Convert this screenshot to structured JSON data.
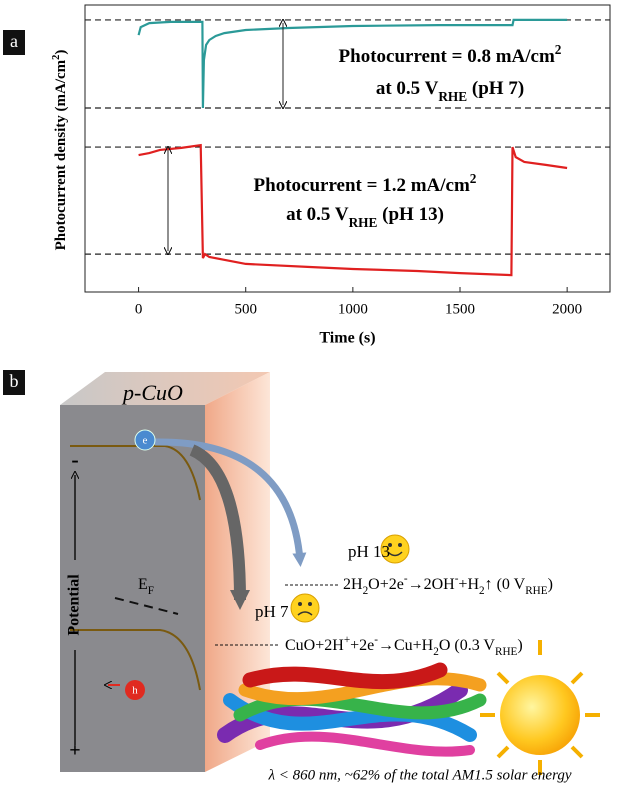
{
  "panel_labels": [
    "a",
    "b"
  ],
  "chart_data": {
    "type": "line",
    "xlabel": "Time (s)",
    "ylabel": [
      {
        "text": "Photocurrent density (mA/cm"
      },
      {
        "text": "2",
        "pos": "super"
      },
      {
        "text": ")"
      }
    ],
    "xlim": [
      -250,
      2200
    ],
    "xticks": [
      0,
      500,
      1000,
      1500,
      2000
    ],
    "ylim": [
      0,
      100
    ],
    "reference_lines": [
      94.8,
      64.1,
      50.5,
      13.2
    ],
    "series": [
      {
        "color": "#2b9a98",
        "x": [
          0,
          10,
          50,
          150,
          298,
          300,
          305,
          315,
          330,
          360,
          400,
          500,
          700,
          1000,
          1400,
          1745,
          1750,
          2000
        ],
        "values": [
          89.5,
          92.3,
          93.7,
          94.1,
          94.1,
          64.1,
          80.8,
          86.1,
          87.8,
          89.2,
          90.2,
          91.3,
          92.0,
          92.7,
          93.0,
          93.0,
          94.8,
          94.8
        ]
      },
      {
        "color": "#e02020",
        "x": [
          0,
          50,
          100,
          200,
          290,
          300,
          310,
          330,
          500,
          800,
          1000,
          1300,
          1500,
          1740,
          1745,
          1760,
          1800,
          1900,
          2000
        ],
        "values": [
          47.7,
          48.4,
          49.5,
          50.2,
          51.2,
          11.8,
          13.2,
          12.2,
          9.8,
          8.7,
          8.0,
          7.3,
          6.6,
          5.9,
          50.5,
          47.0,
          45.3,
          44.3,
          43.2
        ]
      }
    ],
    "annotations": [
      {
        "lines": [
          [
            {
              "text": "Photocurrent = 0.8 mA/cm"
            },
            {
              "text": "2",
              "pos": "super"
            }
          ],
          [
            {
              "text": "at 0.5 V"
            },
            {
              "text": "RHE",
              "pos": "sub"
            },
            {
              "text": " (pH 7)"
            }
          ]
        ]
      },
      {
        "lines": [
          [
            {
              "text": "Photocurrent = 1.2 mA/cm"
            },
            {
              "text": "2",
              "pos": "super"
            }
          ],
          [
            {
              "text": "at 0.5 V"
            },
            {
              "text": "RHE",
              "pos": "sub"
            },
            {
              "text": " (pH 13)"
            }
          ]
        ]
      }
    ]
  },
  "diagram": {
    "material": "p-CuO",
    "electron": "e",
    "hole": "h",
    "potential": "Potential",
    "minus": "-",
    "plus": "+",
    "fermi": [
      {
        "text": "E"
      },
      {
        "text": "F",
        "pos": "sub"
      }
    ],
    "ph13": "pH 13",
    "ph7": "pH 7",
    "reaction1": [
      {
        "text": "2H"
      },
      {
        "text": "2",
        "pos": "sub"
      },
      {
        "text": "O+2e"
      },
      {
        "text": "-",
        "pos": "super"
      },
      {
        "text": "→2OH"
      },
      {
        "text": "-",
        "pos": "super"
      },
      {
        "text": "+H"
      },
      {
        "text": "2",
        "pos": "sub"
      },
      {
        "text": "↑ (0 V"
      },
      {
        "text": "RHE",
        "pos": "sub"
      },
      {
        "text": ")"
      }
    ],
    "reaction2": [
      {
        "text": "CuO+2H"
      },
      {
        "text": "+",
        "pos": "super"
      },
      {
        "text": "+2e"
      },
      {
        "text": "-",
        "pos": "super"
      },
      {
        "text": "→Cu+H"
      },
      {
        "text": "2",
        "pos": "sub"
      },
      {
        "text": "O (0.3 V"
      },
      {
        "text": "RHE",
        "pos": "sub"
      },
      {
        "text": ")"
      }
    ],
    "caption": "λ < 860 nm, ~62% of the total AM1.5 solar energy"
  }
}
